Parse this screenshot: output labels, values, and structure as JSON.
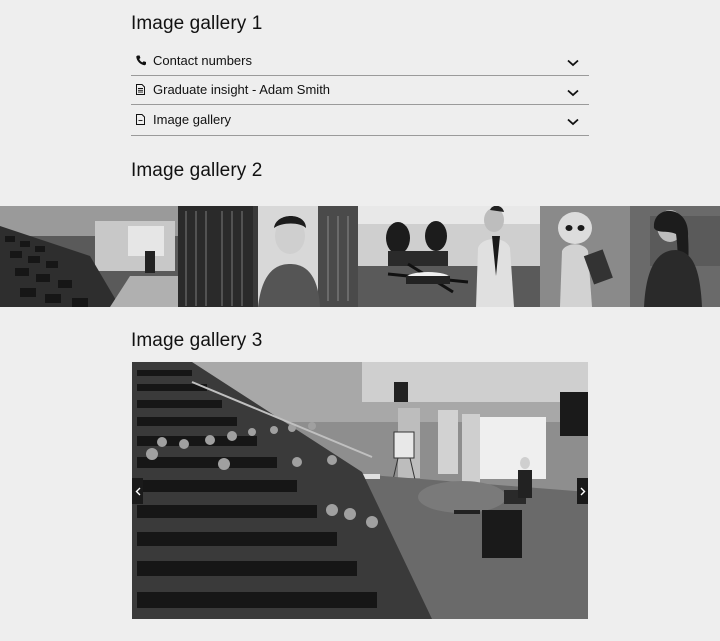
{
  "galleries": {
    "g1_title": "Image gallery 1",
    "g2_title": "Image gallery 2",
    "g3_title": "Image gallery 3"
  },
  "accordion": {
    "items": [
      {
        "label": "Contact numbers",
        "icon": "phone-icon"
      },
      {
        "label": "Graduate insight - Adam Smith",
        "icon": "document-icon"
      },
      {
        "label": "Image gallery",
        "icon": "file-icon"
      }
    ]
  },
  "carousel": {
    "prev_icon": "chevron-left-icon",
    "next_icon": "chevron-right-icon"
  }
}
